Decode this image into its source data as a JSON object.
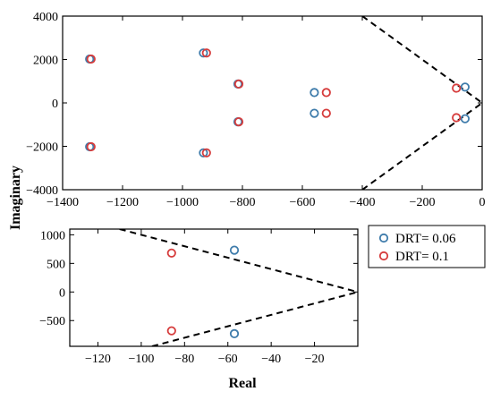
{
  "ylabel": "Imaginary",
  "xlabel": "Real",
  "legend": {
    "placement": "right of lower panel",
    "entries": [
      {
        "label": "DRT= 0.06",
        "color": "#3f7cab"
      },
      {
        "label": "DRT= 0.1",
        "color": "#d63c3c"
      }
    ]
  },
  "chart_data": [
    {
      "type": "scatter",
      "panel": "top",
      "xlim": [
        -1400,
        0
      ],
      "ylim": [
        -4000,
        4000
      ],
      "xticks": [
        -1400,
        -1200,
        -1000,
        -800,
        -600,
        -400,
        -200,
        0
      ],
      "yticks": [
        -4000,
        -2000,
        0,
        2000,
        4000
      ],
      "series": [
        {
          "name": "DRT= 0.06",
          "color": "#3f7cab",
          "points": [
            [
              -1310,
              2020
            ],
            [
              -1310,
              -2020
            ],
            [
              -930,
              2300
            ],
            [
              -930,
              -2300
            ],
            [
              -815,
              870
            ],
            [
              -815,
              -870
            ],
            [
              -560,
              480
            ],
            [
              -560,
              -480
            ],
            [
              -57,
              730
            ],
            [
              -57,
              -730
            ]
          ]
        },
        {
          "name": "DRT= 0.1",
          "color": "#d63c3c",
          "points": [
            [
              -1305,
              2020
            ],
            [
              -1305,
              -2020
            ],
            [
              -920,
              2300
            ],
            [
              -920,
              -2300
            ],
            [
              -812,
              870
            ],
            [
              -812,
              -870
            ],
            [
              -520,
              480
            ],
            [
              -520,
              -480
            ],
            [
              -86,
              680
            ],
            [
              -86,
              -680
            ]
          ]
        }
      ],
      "reference_lines": [
        {
          "style": "dashed",
          "color": "#000000",
          "points": [
            [
              -400,
              4000
            ],
            [
              0,
              0
            ]
          ]
        },
        {
          "style": "dashed",
          "color": "#000000",
          "points": [
            [
              -400,
              -4000
            ],
            [
              0,
              0
            ]
          ]
        }
      ]
    },
    {
      "type": "scatter",
      "panel": "bottom",
      "xlim": [
        -133,
        0
      ],
      "ylim": [
        -950,
        1100
      ],
      "xticks": [
        -120,
        -100,
        -80,
        -60,
        -40,
        -20
      ],
      "yticks": [
        -500,
        0,
        500,
        1000
      ],
      "series": [
        {
          "name": "DRT= 0.06",
          "color": "#3f7cab",
          "points": [
            [
              -57,
              730
            ],
            [
              -57,
              -730
            ]
          ]
        },
        {
          "name": "DRT= 0.1",
          "color": "#d63c3c",
          "points": [
            [
              -86,
              680
            ],
            [
              -86,
              -680
            ]
          ]
        }
      ],
      "reference_lines": [
        {
          "style": "dashed",
          "color": "#000000",
          "points": [
            [
              -110,
              1100
            ],
            [
              0,
              0
            ]
          ]
        },
        {
          "style": "dashed",
          "color": "#000000",
          "points": [
            [
              -95,
              -950
            ],
            [
              0,
              0
            ]
          ]
        }
      ]
    }
  ]
}
